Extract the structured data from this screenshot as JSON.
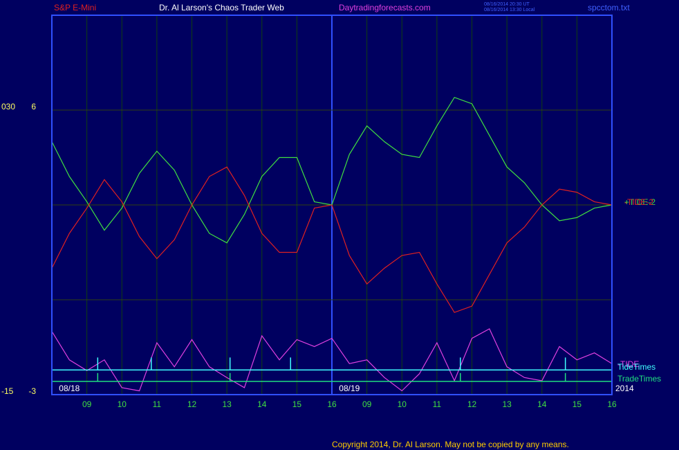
{
  "header": {
    "instrument": "S&P E-Mini",
    "site_title": "Dr. Al Larson's Chaos Trader Web",
    "url": "Daytradingforecasts.com",
    "time_ut": "08/16/2014 20:30 UT",
    "time_local": "08/16/2014 13:30 Local",
    "file": "spcctom.txt"
  },
  "chart_data": {
    "type": "line",
    "x": [
      0,
      0.5,
      1,
      1.5,
      2,
      2.5,
      3,
      3.5,
      4,
      4.5,
      5,
      5.5,
      6,
      6.5,
      7,
      7.5,
      8,
      8.5,
      9,
      9.5,
      10,
      10.5,
      11,
      11.5,
      12,
      12.5,
      13,
      13.5,
      14,
      14.5,
      15,
      15.5,
      16
    ],
    "xlim": [
      0,
      16
    ],
    "xticks": [
      {
        "value": 1,
        "label": "09"
      },
      {
        "value": 2,
        "label": "10"
      },
      {
        "value": 3,
        "label": "11"
      },
      {
        "value": 4,
        "label": "12"
      },
      {
        "value": 5,
        "label": "13"
      },
      {
        "value": 6,
        "label": "14"
      },
      {
        "value": 7,
        "label": "15"
      },
      {
        "value": 8,
        "label": "16"
      },
      {
        "value": 9,
        "label": "09"
      },
      {
        "value": 10,
        "label": "10"
      },
      {
        "value": 11,
        "label": "11"
      },
      {
        "value": 12,
        "label": "12"
      },
      {
        "value": 13,
        "label": "13"
      },
      {
        "value": 14,
        "label": "14"
      },
      {
        "value": 15,
        "label": "15"
      },
      {
        "value": 16,
        "label": "16"
      }
    ],
    "ylim": [
      -3,
      9
    ],
    "yticks": [
      -3,
      6
    ],
    "ygrid": [
      0,
      3,
      6
    ],
    "y2lim": [
      -15,
      45
    ],
    "y2ticks": [
      -15,
      {
        "value": 30,
        "label": "030"
      }
    ],
    "day_labels": [
      {
        "x": 0.5,
        "label": "08/18"
      },
      {
        "x": 8.5,
        "label": "08/19"
      }
    ],
    "year": "2014",
    "series": [
      {
        "name": "+TIDE-2",
        "color": "#40e040",
        "values": [
          5.0,
          3.9,
          3.1,
          2.2,
          2.9,
          4.0,
          4.7,
          4.1,
          3.0,
          2.1,
          1.8,
          2.7,
          3.9,
          4.5,
          4.5,
          3.1,
          3.0,
          4.6,
          5.5,
          5.0,
          4.6,
          4.5,
          5.5,
          6.4,
          6.2,
          5.2,
          4.2,
          3.7,
          3.0,
          2.5,
          2.6,
          2.9,
          3.0
        ]
      },
      {
        "name": "-TIDE-2",
        "color": "#e02020",
        "values": [
          1.0,
          2.1,
          2.9,
          3.8,
          3.1,
          2.0,
          1.3,
          1.9,
          3.0,
          3.9,
          4.2,
          3.3,
          2.1,
          1.5,
          1.5,
          2.9,
          3.0,
          1.4,
          0.5,
          1.0,
          1.4,
          1.5,
          0.5,
          -0.4,
          -0.2,
          0.8,
          1.8,
          2.3,
          3.0,
          3.5,
          3.4,
          3.1,
          3.0
        ]
      },
      {
        "name": "-TIDE",
        "color": "#e040e0",
        "axis": "y2",
        "values": [
          -5.0,
          -9.5,
          -11.2,
          -9.5,
          -13.9,
          -14.4,
          -6.8,
          -10.6,
          -6.3,
          -10.6,
          -12.3,
          -13.9,
          -5.7,
          -9.5,
          -6.3,
          -7.4,
          -6.1,
          -10.1,
          -9.5,
          -12.3,
          -14.4,
          -11.7,
          -6.8,
          -12.8,
          -6.1,
          -4.6,
          -10.6,
          -12.3,
          -12.8,
          -7.4,
          -9.5,
          -8.4,
          -10.1
        ]
      }
    ],
    "markers": [
      {
        "name": "TideTimes",
        "color": "#40ffff",
        "level": -11.1,
        "x": [
          1.31,
          2.84,
          5.09,
          6.82,
          11.67,
          14.67
        ]
      },
      {
        "name": "TradeTimes",
        "color": "#20e080",
        "level": -12.9,
        "x": [
          1.31,
          5.09,
          11.67,
          14.67
        ]
      }
    ]
  },
  "footer": {
    "copyright": "Copyright 2014, Dr. Al Larson. May not be copied by any means."
  }
}
